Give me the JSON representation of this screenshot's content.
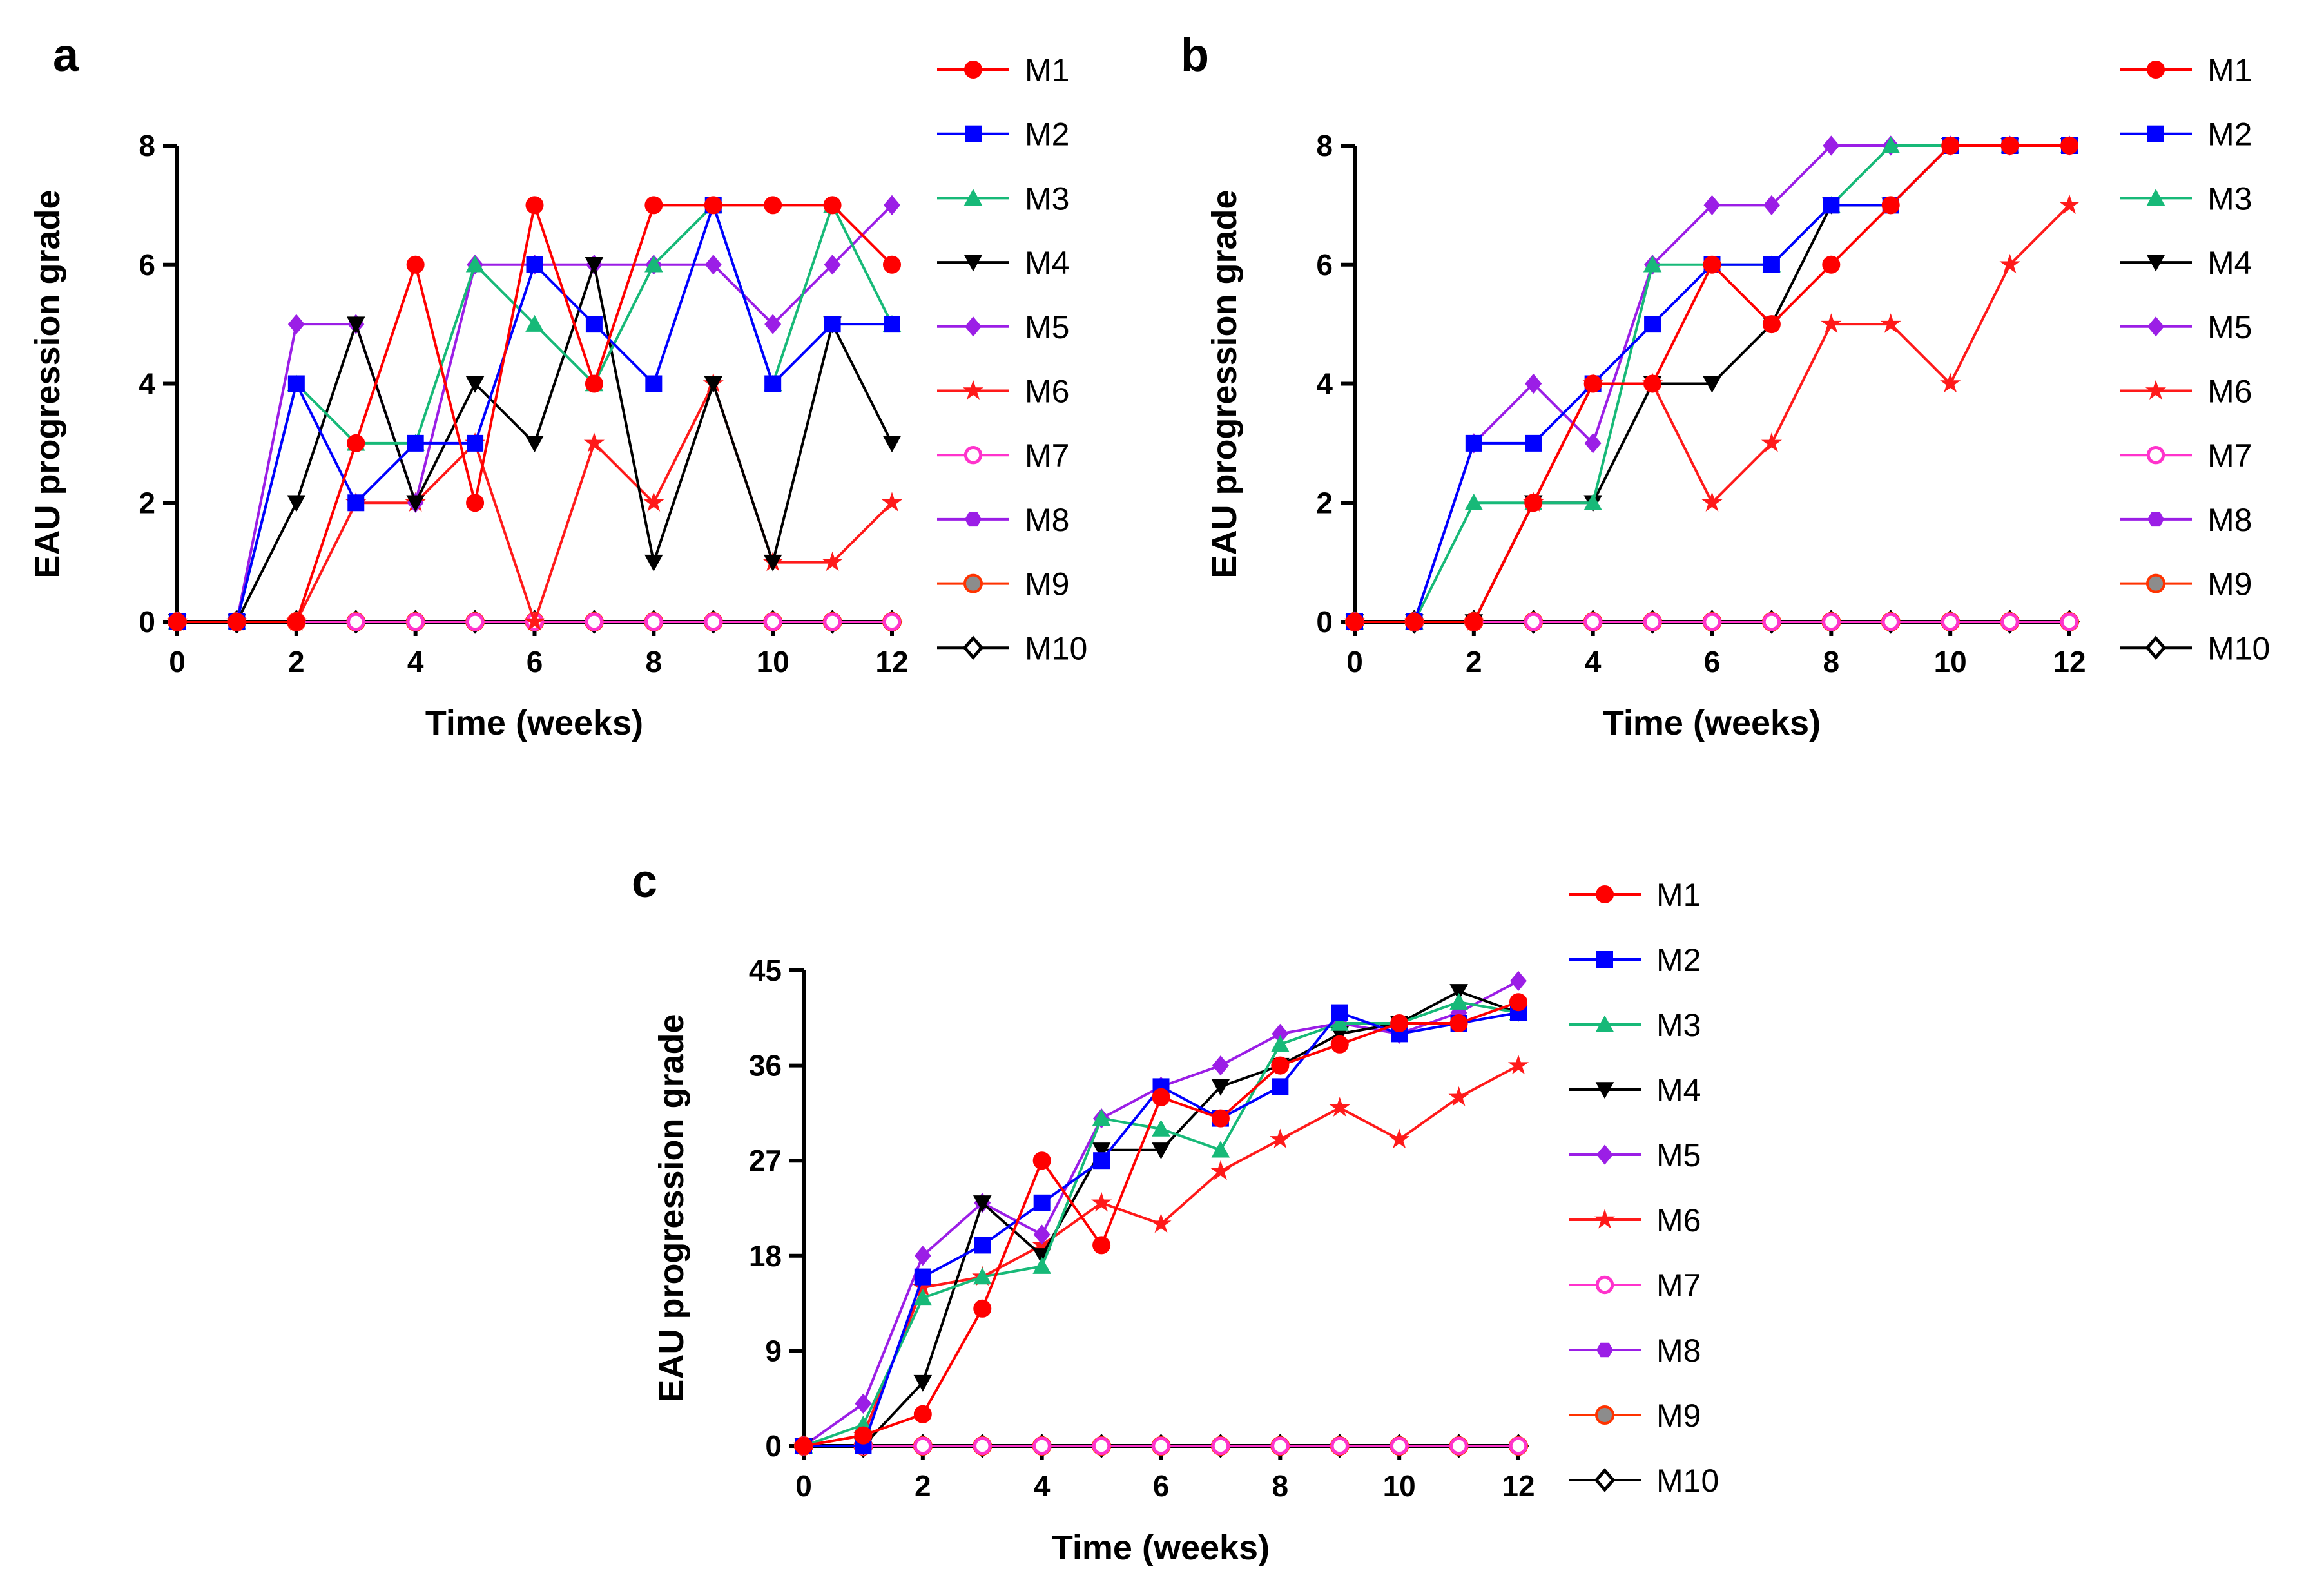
{
  "chart_data": [
    {
      "panel": "a",
      "type": "line",
      "xlabel": "Time (weeks)",
      "ylabel": "EAU progression grade",
      "xlim": [
        0,
        12
      ],
      "ylim": [
        0,
        8
      ],
      "xticks": [
        "0",
        "2",
        "4",
        "6",
        "8",
        "10",
        "12"
      ],
      "yticks": [
        "0",
        "2",
        "4",
        "6",
        "8"
      ],
      "x": [
        0,
        1,
        2,
        3,
        4,
        5,
        6,
        7,
        8,
        9,
        10,
        11,
        12
      ],
      "legend_position": "right",
      "series": [
        {
          "name": "M1",
          "color": "#ff0000",
          "marker": "circle",
          "values": [
            0,
            0,
            0,
            3,
            6,
            2,
            7,
            4,
            7,
            7,
            7,
            7,
            6
          ]
        },
        {
          "name": "M2",
          "color": "#0000ff",
          "marker": "square",
          "values": [
            0,
            0,
            4,
            2,
            3,
            3,
            6,
            5,
            4,
            7,
            4,
            5,
            5
          ]
        },
        {
          "name": "M3",
          "color": "#17b978",
          "marker": "triangle-up",
          "values": [
            0,
            0,
            4,
            3,
            3,
            6,
            5,
            4,
            6,
            7,
            4,
            7,
            5
          ]
        },
        {
          "name": "M4",
          "color": "#000000",
          "marker": "triangle-down",
          "values": [
            0,
            0,
            2,
            5,
            2,
            4,
            3,
            6,
            1,
            4,
            1,
            5,
            3
          ]
        },
        {
          "name": "M5",
          "color": "#9b1ee6",
          "marker": "diamond",
          "values": [
            0,
            0,
            5,
            5,
            2,
            6,
            6,
            6,
            6,
            6,
            5,
            6,
            7
          ]
        },
        {
          "name": "M6",
          "color": "#ff1a1a",
          "marker": "star",
          "values": [
            0,
            0,
            0,
            2,
            2,
            3,
            0,
            3,
            2,
            4,
            1,
            1,
            2
          ]
        },
        {
          "name": "M7",
          "color": "#ff33cc",
          "marker": "circle-open",
          "values": [
            0,
            0,
            0,
            0,
            0,
            0,
            0,
            0,
            0,
            0,
            0,
            0,
            0
          ]
        },
        {
          "name": "M8",
          "color": "#9b1ee6",
          "marker": "hexagon",
          "values": [
            0,
            0,
            0,
            0,
            0,
            0,
            0,
            0,
            0,
            0,
            0,
            0,
            0
          ]
        },
        {
          "name": "M9",
          "color": "#ff3300",
          "marker": "circle-gray",
          "values": [
            0,
            0,
            0,
            0,
            0,
            0,
            0,
            0,
            0,
            0,
            0,
            0,
            0
          ]
        },
        {
          "name": "M10",
          "color": "#000000",
          "marker": "diamond-open",
          "values": [
            0,
            0,
            0,
            0,
            0,
            0,
            0,
            0,
            0,
            0,
            0,
            0,
            0
          ]
        }
      ]
    },
    {
      "panel": "b",
      "type": "line",
      "xlabel": "Time (weeks)",
      "ylabel": "EAU progression grade",
      "xlim": [
        0,
        12
      ],
      "ylim": [
        0,
        8
      ],
      "xticks": [
        "0",
        "2",
        "4",
        "6",
        "8",
        "10",
        "12"
      ],
      "yticks": [
        "0",
        "2",
        "4",
        "6",
        "8"
      ],
      "x": [
        0,
        1,
        2,
        3,
        4,
        5,
        6,
        7,
        8,
        9,
        10,
        11,
        12
      ],
      "legend_position": "right",
      "series": [
        {
          "name": "M1",
          "color": "#ff0000",
          "marker": "circle",
          "values": [
            0,
            0,
            0,
            2,
            4,
            4,
            6,
            5,
            6,
            7,
            8,
            8,
            8
          ]
        },
        {
          "name": "M2",
          "color": "#0000ff",
          "marker": "square",
          "values": [
            0,
            0,
            3,
            3,
            4,
            5,
            6,
            6,
            7,
            7,
            8,
            8,
            8
          ]
        },
        {
          "name": "M3",
          "color": "#17b978",
          "marker": "triangle-up",
          "values": [
            0,
            0,
            2,
            2,
            2,
            6,
            6,
            6,
            7,
            8,
            8,
            8,
            8
          ]
        },
        {
          "name": "M4",
          "color": "#000000",
          "marker": "triangle-down",
          "values": [
            0,
            0,
            0,
            2,
            2,
            4,
            4,
            5,
            7,
            7,
            8,
            8,
            8
          ]
        },
        {
          "name": "M5",
          "color": "#9b1ee6",
          "marker": "diamond",
          "values": [
            0,
            0,
            3,
            4,
            3,
            6,
            7,
            7,
            8,
            8,
            8,
            8,
            8
          ]
        },
        {
          "name": "M6",
          "color": "#ff1a1a",
          "marker": "star",
          "values": [
            0,
            0,
            0,
            2,
            4,
            4,
            2,
            3,
            5,
            5,
            4,
            6,
            7
          ]
        },
        {
          "name": "M7",
          "color": "#ff33cc",
          "marker": "circle-open",
          "values": [
            0,
            0,
            0,
            0,
            0,
            0,
            0,
            0,
            0,
            0,
            0,
            0,
            0
          ]
        },
        {
          "name": "M8",
          "color": "#9b1ee6",
          "marker": "hexagon",
          "values": [
            0,
            0,
            0,
            0,
            0,
            0,
            0,
            0,
            0,
            0,
            0,
            0,
            0
          ]
        },
        {
          "name": "M9",
          "color": "#ff3300",
          "marker": "circle-gray",
          "values": [
            0,
            0,
            0,
            0,
            0,
            0,
            0,
            0,
            0,
            0,
            0,
            0,
            0
          ]
        },
        {
          "name": "M10",
          "color": "#000000",
          "marker": "diamond-open",
          "values": [
            0,
            0,
            0,
            0,
            0,
            0,
            0,
            0,
            0,
            0,
            0,
            0,
            0
          ]
        }
      ]
    },
    {
      "panel": "c",
      "type": "line",
      "xlabel": "Time (weeks)",
      "ylabel": "EAU progression grade",
      "xlim": [
        0,
        12
      ],
      "ylim": [
        0,
        45
      ],
      "xticks": [
        "0",
        "2",
        "4",
        "6",
        "8",
        "10",
        "12"
      ],
      "yticks": [
        "0",
        "9",
        "18",
        "27",
        "36",
        "45"
      ],
      "x": [
        0,
        1,
        2,
        3,
        4,
        5,
        6,
        7,
        8,
        9,
        10,
        11,
        12
      ],
      "legend_position": "right",
      "series": [
        {
          "name": "M1",
          "color": "#ff0000",
          "marker": "circle",
          "values": [
            0,
            1,
            3,
            13,
            27,
            19,
            33,
            31,
            36,
            38,
            40,
            40,
            42
          ]
        },
        {
          "name": "M2",
          "color": "#0000ff",
          "marker": "square",
          "values": [
            0,
            0,
            16,
            19,
            23,
            27,
            34,
            31,
            34,
            41,
            39,
            40,
            41
          ]
        },
        {
          "name": "M3",
          "color": "#17b978",
          "marker": "triangle-up",
          "values": [
            0,
            2,
            14,
            16,
            17,
            31,
            30,
            28,
            38,
            40,
            40,
            42,
            41
          ]
        },
        {
          "name": "M4",
          "color": "#000000",
          "marker": "triangle-down",
          "values": [
            0,
            0,
            6,
            23,
            18,
            28,
            28,
            34,
            36,
            39,
            40,
            43,
            41
          ]
        },
        {
          "name": "M5",
          "color": "#9b1ee6",
          "marker": "diamond",
          "values": [
            0,
            4,
            18,
            23,
            20,
            31,
            34,
            36,
            39,
            40,
            39,
            41,
            44
          ]
        },
        {
          "name": "M6",
          "color": "#ff1a1a",
          "marker": "star",
          "values": [
            0,
            1,
            15,
            16,
            19,
            23,
            21,
            26,
            29,
            32,
            29,
            33,
            36
          ]
        },
        {
          "name": "M7",
          "color": "#ff33cc",
          "marker": "circle-open",
          "values": [
            0,
            0,
            0,
            0,
            0,
            0,
            0,
            0,
            0,
            0,
            0,
            0,
            0
          ]
        },
        {
          "name": "M8",
          "color": "#9b1ee6",
          "marker": "hexagon",
          "values": [
            0,
            0,
            0,
            0,
            0,
            0,
            0,
            0,
            0,
            0,
            0,
            0,
            0
          ]
        },
        {
          "name": "M9",
          "color": "#ff3300",
          "marker": "circle-gray",
          "values": [
            0,
            0,
            0,
            0,
            0,
            0,
            0,
            0,
            0,
            0,
            0,
            0,
            0
          ]
        },
        {
          "name": "M10",
          "color": "#000000",
          "marker": "diamond-open",
          "values": [
            0,
            0,
            0,
            0,
            0,
            0,
            0,
            0,
            0,
            0,
            0,
            0,
            0
          ]
        }
      ]
    }
  ]
}
